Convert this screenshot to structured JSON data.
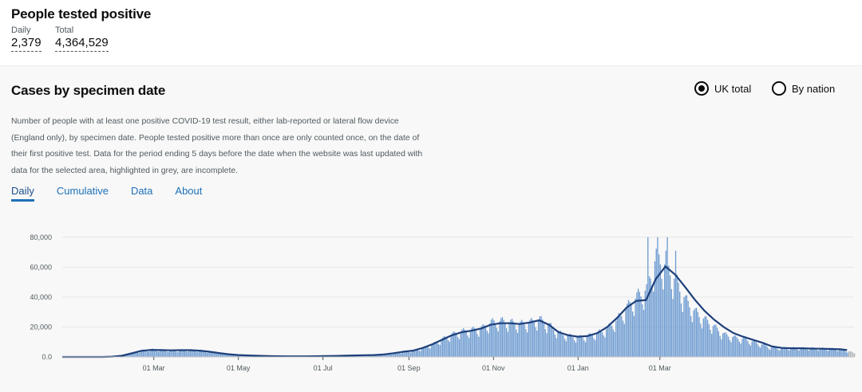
{
  "summary": {
    "title": "People tested positive",
    "daily_label": "Daily",
    "daily_value": "2,379",
    "total_label": "Total",
    "total_value": "4,364,529"
  },
  "card": {
    "title": "Cases by specimen date",
    "radio_uk": "UK total",
    "radio_nation": "By nation",
    "description": "Number of people with at least one positive COVID-19 test result, either lab-reported or lateral flow device (England only), by specimen date. People tested positive more than once are only counted once, on the date of their first positive test. Data for the period ending 5 days before the date when the website was last updated with data for the selected area, highlighted in grey, are incomplete.",
    "tabs": [
      "Daily",
      "Cumulative",
      "Data",
      "About"
    ]
  },
  "colors": {
    "bar": "#6d9bd1",
    "bar_incomplete": "#b1b4b6",
    "line": "#1d3f7a",
    "link": "#1d70b8"
  },
  "chart_data": {
    "type": "bar",
    "x_tick_labels": [
      "01 Mar",
      "01 May",
      "01 Jul",
      "01 Sep",
      "01 Nov",
      "01 Jan",
      "01 Mar"
    ],
    "y_tick_labels": [
      "0.0",
      "20,000",
      "40,000",
      "60,000",
      "80,000"
    ],
    "ylim": [
      0,
      82000
    ],
    "grid": true,
    "series": [
      {
        "type": "bar",
        "points": [
          [
            0,
            0
          ],
          [
            8,
            0
          ],
          [
            15,
            1
          ],
          [
            22,
            3
          ],
          [
            29,
            20
          ],
          [
            36,
            200
          ],
          [
            43,
            900
          ],
          [
            50,
            2600
          ],
          [
            57,
            4300
          ],
          [
            64,
            5000
          ],
          [
            71,
            4700
          ],
          [
            78,
            4300
          ],
          [
            85,
            4500
          ],
          [
            92,
            4700
          ],
          [
            99,
            4400
          ],
          [
            106,
            3600
          ],
          [
            113,
            2600
          ],
          [
            120,
            1800
          ],
          [
            127,
            1300
          ],
          [
            134,
            1000
          ],
          [
            141,
            800
          ],
          [
            148,
            600
          ],
          [
            155,
            500
          ],
          [
            162,
            400
          ],
          [
            169,
            400
          ],
          [
            176,
            400
          ],
          [
            183,
            500
          ],
          [
            190,
            600
          ],
          [
            197,
            700
          ],
          [
            204,
            900
          ],
          [
            211,
            1100
          ],
          [
            218,
            1200
          ],
          [
            225,
            1300
          ],
          [
            232,
            1600
          ],
          [
            239,
            2500
          ],
          [
            246,
            3500
          ],
          [
            253,
            4200
          ],
          [
            260,
            6000
          ],
          [
            267,
            8500
          ],
          [
            274,
            12000
          ],
          [
            281,
            15000
          ],
          [
            288,
            17000
          ],
          [
            295,
            18000
          ],
          [
            302,
            19000
          ],
          [
            309,
            23000
          ],
          [
            316,
            24000
          ],
          [
            323,
            23000
          ],
          [
            330,
            22000
          ],
          [
            337,
            23000
          ],
          [
            344,
            25000
          ],
          [
            351,
            21000
          ],
          [
            358,
            16000
          ],
          [
            365,
            14000
          ],
          [
            372,
            13000
          ],
          [
            379,
            14000
          ],
          [
            386,
            16000
          ],
          [
            393,
            19000
          ],
          [
            400,
            25000
          ],
          [
            407,
            33000
          ],
          [
            414,
            40000
          ],
          [
            421,
            45000
          ],
          [
            428,
            67000
          ],
          [
            435,
            61000
          ],
          [
            442,
            51000
          ],
          [
            449,
            38000
          ],
          [
            456,
            30000
          ],
          [
            463,
            25000
          ],
          [
            470,
            20000
          ],
          [
            477,
            15000
          ],
          [
            484,
            13000
          ],
          [
            491,
            12000
          ],
          [
            498,
            10000
          ],
          [
            505,
            8000
          ],
          [
            512,
            6000
          ],
          [
            519,
            6000
          ],
          [
            526,
            6000
          ],
          [
            533,
            5900
          ],
          [
            540,
            5800
          ],
          [
            547,
            5700
          ],
          [
            554,
            5500
          ],
          [
            561,
            5200
          ],
          [
            568,
            3500
          ],
          [
            571,
            2400
          ]
        ]
      },
      {
        "type": "line",
        "name": "7-day average",
        "points": [
          [
            0,
            0
          ],
          [
            15,
            0
          ],
          [
            22,
            2
          ],
          [
            29,
            20
          ],
          [
            36,
            200
          ],
          [
            43,
            800
          ],
          [
            50,
            2400
          ],
          [
            57,
            4100
          ],
          [
            64,
            4700
          ],
          [
            71,
            4600
          ],
          [
            78,
            4400
          ],
          [
            85,
            4500
          ],
          [
            92,
            4500
          ],
          [
            99,
            4200
          ],
          [
            106,
            3500
          ],
          [
            113,
            2600
          ],
          [
            120,
            1800
          ],
          [
            127,
            1300
          ],
          [
            134,
            1000
          ],
          [
            141,
            800
          ],
          [
            148,
            600
          ],
          [
            155,
            500
          ],
          [
            162,
            450
          ],
          [
            169,
            420
          ],
          [
            176,
            420
          ],
          [
            183,
            480
          ],
          [
            190,
            580
          ],
          [
            197,
            700
          ],
          [
            204,
            850
          ],
          [
            211,
            1000
          ],
          [
            218,
            1150
          ],
          [
            225,
            1300
          ],
          [
            232,
            1700
          ],
          [
            239,
            2500
          ],
          [
            246,
            3500
          ],
          [
            253,
            4200
          ],
          [
            260,
            6000
          ],
          [
            267,
            8500
          ],
          [
            274,
            11500
          ],
          [
            281,
            14500
          ],
          [
            288,
            16500
          ],
          [
            295,
            17500
          ],
          [
            302,
            19000
          ],
          [
            309,
            21500
          ],
          [
            316,
            22500
          ],
          [
            323,
            22500
          ],
          [
            330,
            22000
          ],
          [
            337,
            23000
          ],
          [
            344,
            24500
          ],
          [
            351,
            21500
          ],
          [
            358,
            16500
          ],
          [
            365,
            14500
          ],
          [
            372,
            13500
          ],
          [
            379,
            14000
          ],
          [
            386,
            16000
          ],
          [
            393,
            20000
          ],
          [
            400,
            26000
          ],
          [
            407,
            33000
          ],
          [
            414,
            37500
          ],
          [
            421,
            38000
          ],
          [
            428,
            52000
          ],
          [
            435,
            60500
          ],
          [
            442,
            55000
          ],
          [
            449,
            47000
          ],
          [
            456,
            38500
          ],
          [
            463,
            31000
          ],
          [
            470,
            25000
          ],
          [
            477,
            20000
          ],
          [
            484,
            16000
          ],
          [
            491,
            13500
          ],
          [
            498,
            11500
          ],
          [
            505,
            9500
          ],
          [
            512,
            7000
          ],
          [
            519,
            6000
          ],
          [
            526,
            5800
          ],
          [
            533,
            5800
          ],
          [
            540,
            5600
          ],
          [
            547,
            5500
          ],
          [
            554,
            5300
          ],
          [
            561,
            5100
          ],
          [
            566,
            4600
          ]
        ]
      }
    ]
  }
}
